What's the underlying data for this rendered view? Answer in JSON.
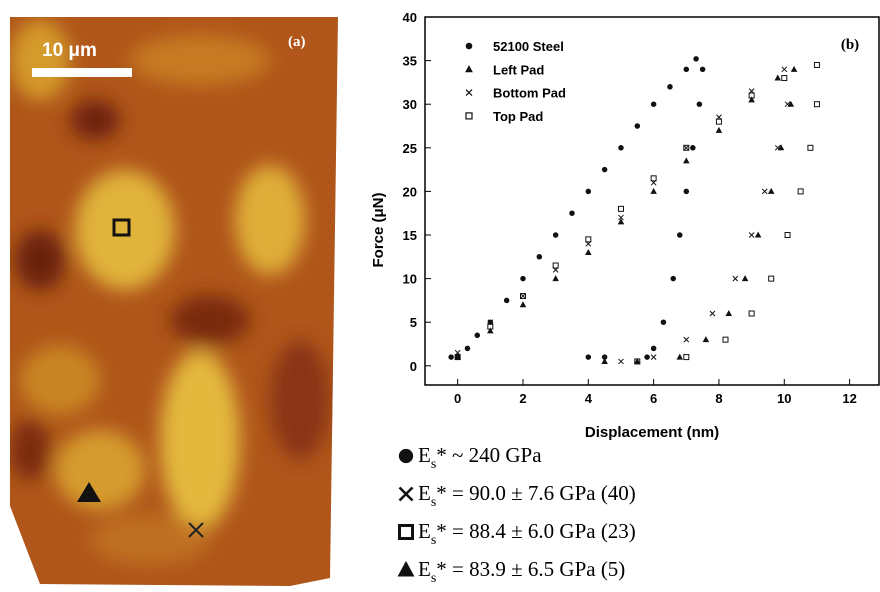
{
  "image_panel": {
    "label": "(a)",
    "scale_bar": "10 μm"
  },
  "chart_data": {
    "type": "scatter",
    "panel_label": "(b)",
    "x_label": "Displacement (nm)",
    "y_label": "Force (μN)",
    "xlim": [
      -1,
      12.9
    ],
    "ylim": [
      -2.2,
      40
    ],
    "xticks": [
      0,
      2,
      4,
      6,
      8,
      10,
      12
    ],
    "yticks": [
      0,
      5,
      10,
      15,
      20,
      25,
      30,
      35,
      40
    ],
    "series": [
      {
        "name": "52100 Steel",
        "marker": "circle",
        "color": "#111111",
        "x": [
          -0.2,
          0,
          0.3,
          0.6,
          1,
          1.5,
          2,
          2.5,
          3,
          3.5,
          4,
          4.5,
          5,
          5.5,
          6,
          6.5,
          7,
          7.3,
          7.5,
          7.4,
          7.2,
          7,
          6.8,
          6.6,
          6.3,
          6,
          5.8,
          4.5,
          4
        ],
        "values": [
          1,
          1,
          2,
          3.5,
          5,
          7.5,
          10,
          12.5,
          15,
          17.5,
          20,
          22.5,
          25,
          27.5,
          30,
          32,
          34,
          35.2,
          34,
          30,
          25,
          20,
          15,
          10,
          5,
          2,
          1,
          1,
          1
        ]
      },
      {
        "name": "Left Pad",
        "marker": "triangle",
        "color": "#111111",
        "x": [
          0,
          1,
          2,
          3,
          4,
          5,
          6,
          7,
          8,
          9,
          9.8,
          10.3,
          10.2,
          9.9,
          9.6,
          9.2,
          8.8,
          8.3,
          7.6,
          6.8,
          5.5,
          4.5
        ],
        "values": [
          1,
          4,
          7,
          10,
          13,
          16.5,
          20,
          23.5,
          27,
          30.5,
          33,
          34,
          30,
          25,
          20,
          15,
          10,
          6,
          3,
          1,
          0.5,
          0.5
        ]
      },
      {
        "name": "Bottom Pad",
        "marker": "cross",
        "color": "#111111",
        "x": [
          0,
          1,
          2,
          3,
          4,
          5,
          6,
          7,
          8,
          9,
          10,
          10.1,
          9.8,
          9.4,
          9,
          8.5,
          7.8,
          7,
          6,
          5
        ],
        "values": [
          1.5,
          5,
          8,
          11,
          14,
          17,
          21,
          25,
          28.5,
          31.5,
          34,
          30,
          25,
          20,
          15,
          10,
          6,
          3,
          1,
          0.5
        ]
      },
      {
        "name": "Top Pad",
        "marker": "square",
        "color": "#111111",
        "x": [
          0,
          1,
          2,
          3,
          4,
          5,
          6,
          7,
          8,
          9,
          10,
          11,
          11,
          10.8,
          10.5,
          10.1,
          9.6,
          9,
          8.2,
          7,
          5.5
        ],
        "values": [
          1,
          4.5,
          8,
          11.5,
          14.5,
          18,
          21.5,
          25,
          28,
          31,
          33,
          34.5,
          30,
          25,
          20,
          15,
          10,
          6,
          3,
          1,
          0.5
        ]
      }
    ]
  },
  "moduli": [
    {
      "marker": "circle",
      "symbol": "E",
      "sub": "s",
      "text": "* ~ 240 GPa"
    },
    {
      "marker": "cross",
      "symbol": "E",
      "sub": "s",
      "text": "* = 90.0 ± 7.6 GPa (40)"
    },
    {
      "marker": "square",
      "symbol": "E",
      "sub": "s",
      "text": "* = 88.4 ± 6.0 GPa (23)"
    },
    {
      "marker": "triangle",
      "symbol": "E",
      "sub": "s",
      "text": "* = 83.9 ± 6.5 GPa (5)"
    }
  ]
}
